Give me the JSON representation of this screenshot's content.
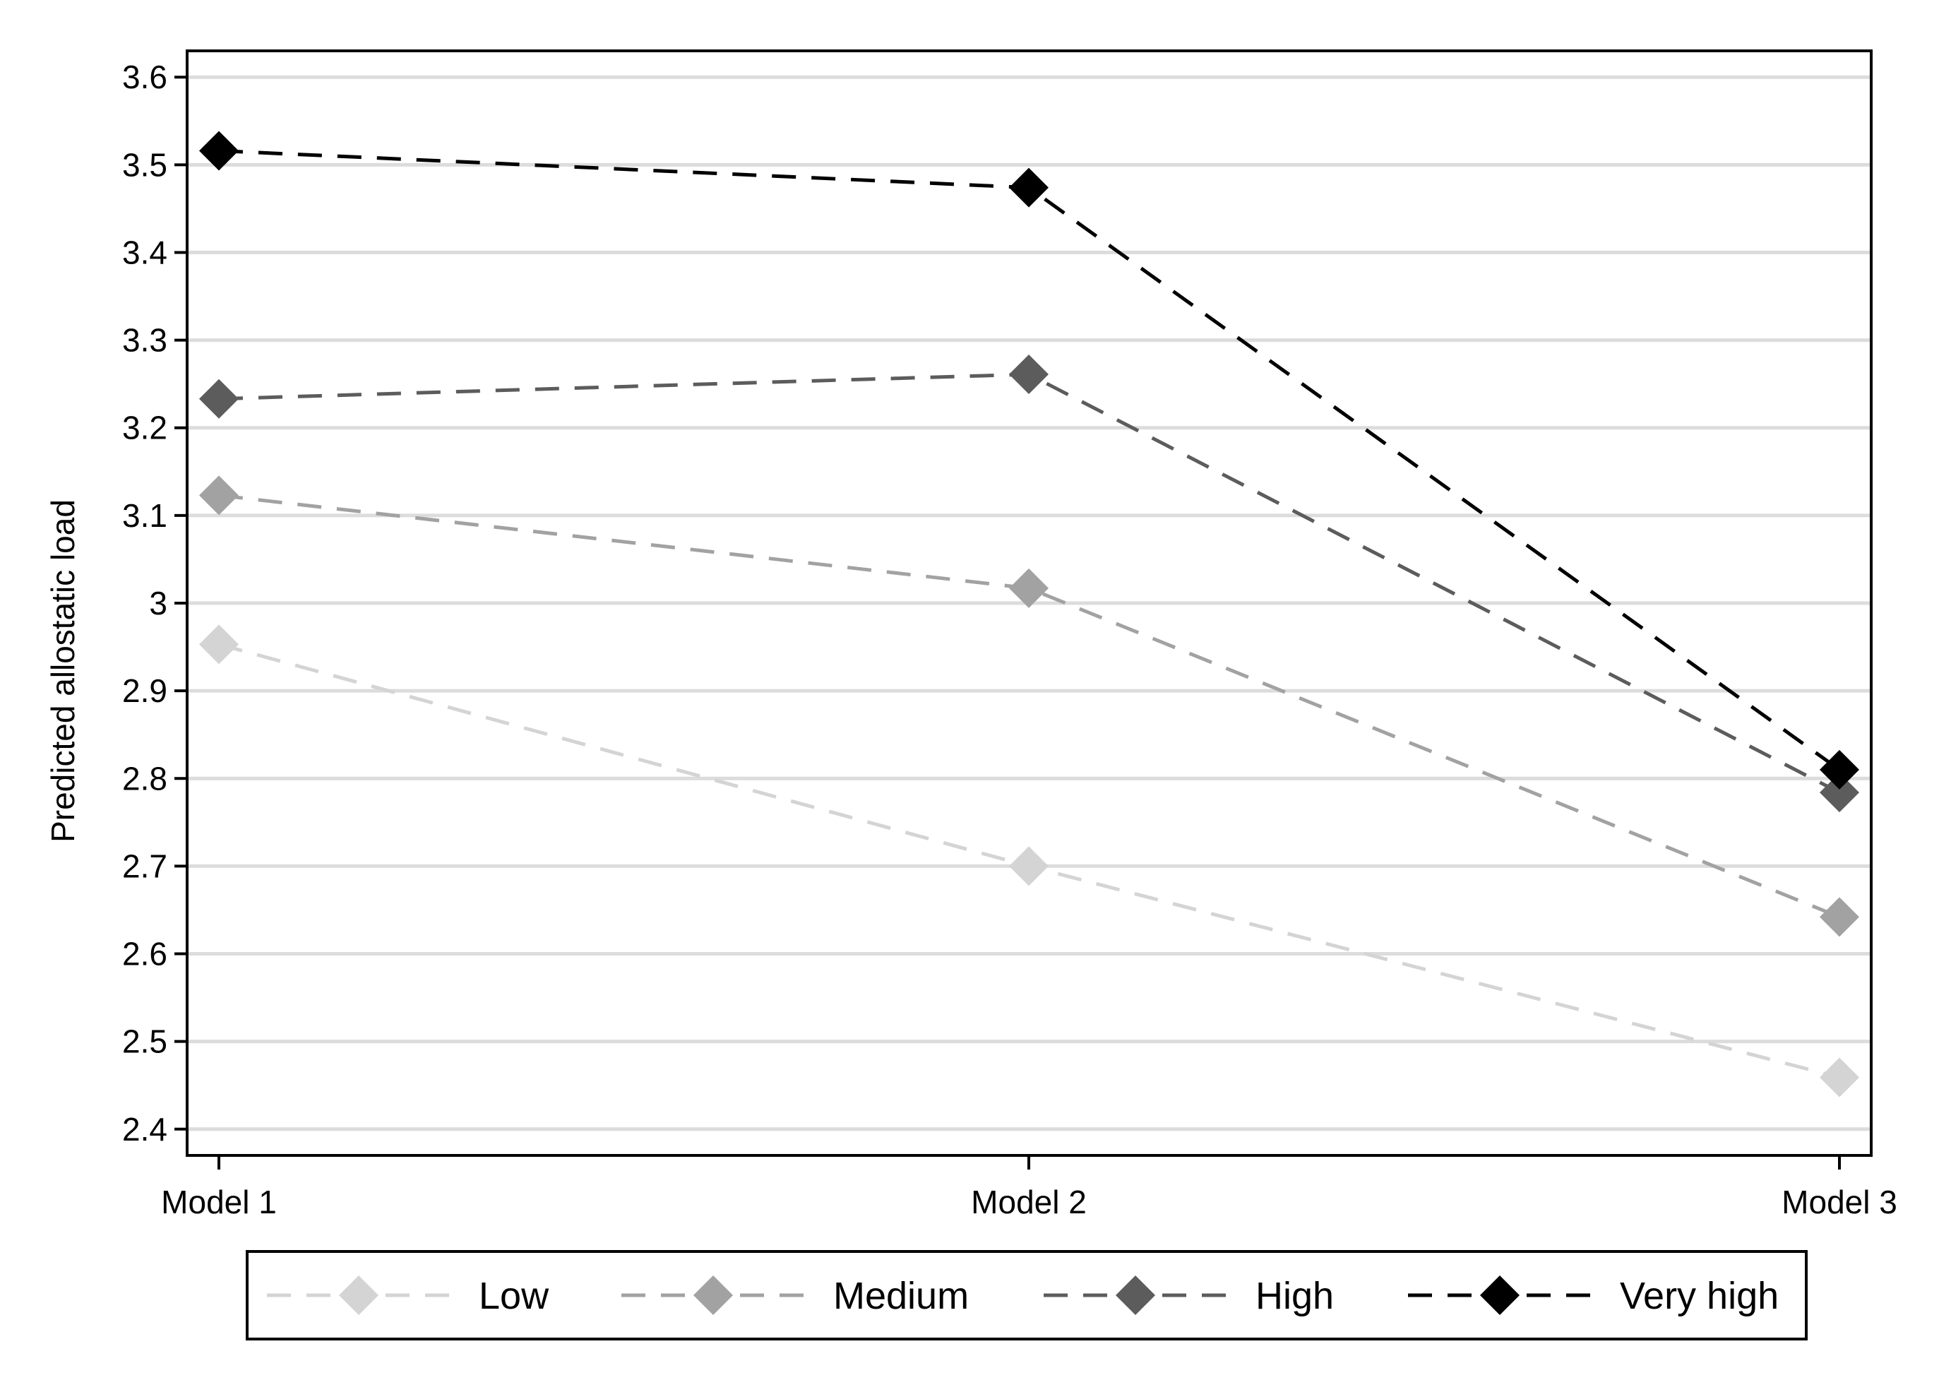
{
  "chart_data": {
    "type": "line",
    "title": "",
    "xlabel": "",
    "ylabel": "Predicted allostatic load",
    "categories": [
      "Model 1",
      "Model 2",
      "Model 3"
    ],
    "ylim": [
      2.37,
      3.63
    ],
    "yticks": [
      "2.4",
      "2.5",
      "2.6",
      "2.7",
      "2.8",
      "2.9",
      "3",
      "3.1",
      "3.2",
      "3.3",
      "3.4",
      "3.5",
      "3.6"
    ],
    "grid": true,
    "legend_position": "bottom",
    "series": [
      {
        "name": "Low",
        "values": [
          2.953,
          2.7,
          2.459
        ],
        "color": "#d4d4d4"
      },
      {
        "name": "Medium",
        "values": [
          3.123,
          3.017,
          2.642
        ],
        "color": "#a2a2a2"
      },
      {
        "name": "High",
        "values": [
          3.233,
          3.261,
          2.784
        ],
        "color": "#5c5c5c"
      },
      {
        "name": "Very high",
        "values": [
          3.516,
          3.474,
          2.81
        ],
        "color": "#000000"
      }
    ]
  }
}
